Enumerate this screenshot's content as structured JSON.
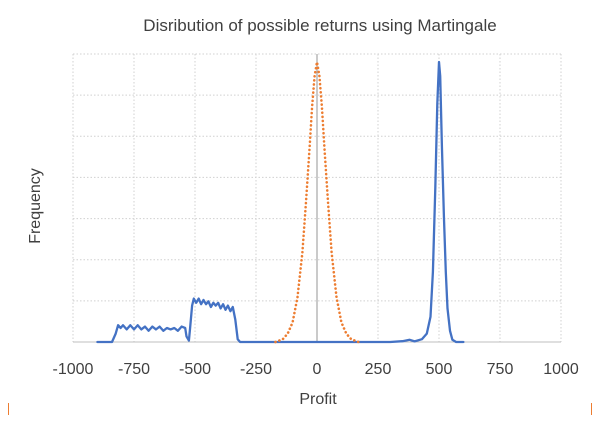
{
  "colors": {
    "series_solid": "#4472c4",
    "series_dotted": "#ed7d31",
    "grid": "#d0d0d0",
    "text": "#404040"
  },
  "chart_data": {
    "type": "line",
    "title": "Disribution of possible returns using Martingale",
    "xlabel": "Profit",
    "ylabel": "Frequency",
    "xlim": [
      -1000,
      1000
    ],
    "ylim": [
      0,
      1
    ],
    "x_ticks": [
      "-1000",
      "-750",
      "-500",
      "-250",
      "0",
      "250",
      "500",
      "750",
      "1000"
    ],
    "grid": "dotted, both axes",
    "legend": "none",
    "y_tick_labels": "none",
    "series": [
      {
        "style": "solid",
        "color": "#4472c4",
        "points": [
          [
            -900,
            0
          ],
          [
            -840,
            0
          ],
          [
            -825,
            0.03
          ],
          [
            -815,
            0.06
          ],
          [
            -805,
            0.05
          ],
          [
            -795,
            0.06
          ],
          [
            -780,
            0.045
          ],
          [
            -765,
            0.06
          ],
          [
            -750,
            0.045
          ],
          [
            -735,
            0.06
          ],
          [
            -720,
            0.045
          ],
          [
            -705,
            0.055
          ],
          [
            -690,
            0.04
          ],
          [
            -675,
            0.055
          ],
          [
            -660,
            0.045
          ],
          [
            -645,
            0.055
          ],
          [
            -630,
            0.04
          ],
          [
            -615,
            0.05
          ],
          [
            -600,
            0.045
          ],
          [
            -585,
            0.05
          ],
          [
            -570,
            0.04
          ],
          [
            -555,
            0.055
          ],
          [
            -540,
            0.05
          ],
          [
            -535,
            0.02
          ],
          [
            -525,
            0.005
          ],
          [
            -520,
            0.05
          ],
          [
            -512,
            0.13
          ],
          [
            -505,
            0.155
          ],
          [
            -495,
            0.14
          ],
          [
            -485,
            0.155
          ],
          [
            -475,
            0.135
          ],
          [
            -465,
            0.15
          ],
          [
            -455,
            0.135
          ],
          [
            -445,
            0.145
          ],
          [
            -435,
            0.125
          ],
          [
            -425,
            0.14
          ],
          [
            -415,
            0.13
          ],
          [
            -405,
            0.14
          ],
          [
            -395,
            0.12
          ],
          [
            -385,
            0.135
          ],
          [
            -375,
            0.115
          ],
          [
            -365,
            0.13
          ],
          [
            -355,
            0.11
          ],
          [
            -345,
            0.125
          ],
          [
            -335,
            0.08
          ],
          [
            -325,
            0.01
          ],
          [
            -315,
            0
          ],
          [
            200,
            0
          ],
          [
            300,
            0
          ],
          [
            350,
            0.003
          ],
          [
            380,
            0.008
          ],
          [
            400,
            0.002
          ],
          [
            430,
            0.01
          ],
          [
            450,
            0.03
          ],
          [
            465,
            0.09
          ],
          [
            475,
            0.25
          ],
          [
            485,
            0.55
          ],
          [
            493,
            0.85
          ],
          [
            500,
            1.0
          ],
          [
            505,
            0.95
          ],
          [
            512,
            0.7
          ],
          [
            520,
            0.45
          ],
          [
            528,
            0.25
          ],
          [
            535,
            0.12
          ],
          [
            545,
            0.04
          ],
          [
            555,
            0.008
          ],
          [
            570,
            0
          ],
          [
            600,
            0
          ]
        ]
      },
      {
        "style": "dotted",
        "color": "#ed7d31",
        "points": [
          [
            -170,
            0
          ],
          [
            -140,
            0.01
          ],
          [
            -120,
            0.03
          ],
          [
            -100,
            0.07
          ],
          [
            -80,
            0.16
          ],
          [
            -60,
            0.32
          ],
          [
            -45,
            0.5
          ],
          [
            -30,
            0.7
          ],
          [
            -20,
            0.84
          ],
          [
            -10,
            0.95
          ],
          [
            0,
            1.0
          ],
          [
            10,
            0.95
          ],
          [
            20,
            0.84
          ],
          [
            30,
            0.7
          ],
          [
            45,
            0.5
          ],
          [
            60,
            0.32
          ],
          [
            80,
            0.16
          ],
          [
            100,
            0.07
          ],
          [
            120,
            0.03
          ],
          [
            140,
            0.01
          ],
          [
            170,
            0
          ]
        ]
      }
    ]
  }
}
